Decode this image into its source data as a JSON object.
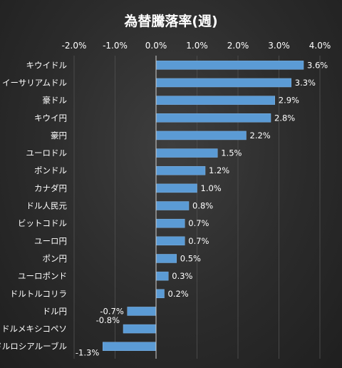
{
  "chart_data": {
    "type": "bar",
    "orientation": "horizontal",
    "title": "為替騰落率(週)",
    "xlim": [
      -2.0,
      4.0
    ],
    "ticks": [
      -2.0,
      -1.0,
      0.0,
      1.0,
      2.0,
      3.0,
      4.0
    ],
    "tick_labels": [
      "-2.0%",
      "-1.0%",
      "0.0%",
      "1.0%",
      "2.0%",
      "3.0%",
      "4.0%"
    ],
    "tick_position": "top",
    "grid": true,
    "bar_color": "#5b9bd5",
    "categories": [
      "キウイドル",
      "イーサリアムドル",
      "豪ドル",
      "キウイ円",
      "豪円",
      "ユーロドル",
      "ポンドル",
      "カナダ円",
      "ドル人民元",
      "ビットコドル",
      "ユーロ円",
      "ポン円",
      "ユーロポンド",
      "ドルトルコリラ",
      "ドル円",
      "ドルメキシコペソ",
      "ドルロシアルーブル"
    ],
    "values": [
      3.6,
      3.3,
      2.9,
      2.8,
      2.2,
      1.5,
      1.2,
      1.0,
      0.8,
      0.7,
      0.7,
      0.5,
      0.3,
      0.2,
      -0.7,
      -0.8,
      -1.3
    ],
    "data_labels": [
      "3.6%",
      "3.3%",
      "2.9%",
      "2.8%",
      "2.2%",
      "1.5%",
      "1.2%",
      "1.0%",
      "0.8%",
      "0.7%",
      "0.7%",
      "0.5%",
      "0.3%",
      "0.2%",
      "-0.7%",
      "-0.8%",
      "-1.3%"
    ]
  }
}
